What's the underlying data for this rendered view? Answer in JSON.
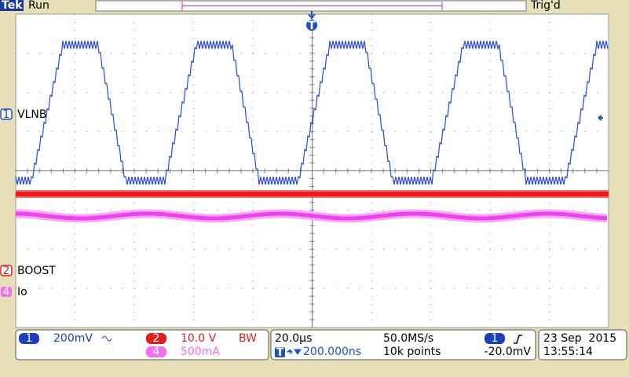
{
  "header": {
    "brand": "Tek",
    "status": "Run",
    "trigger_state": "Trig'd"
  },
  "trigger_marker": "T",
  "channels": [
    {
      "number": "1",
      "label": "VLNB"
    },
    {
      "number": "2",
      "label": "BOOST"
    },
    {
      "number": "4",
      "label": "Io"
    }
  ],
  "readouts": {
    "ch1": {
      "number": "1",
      "scale": "200mV"
    },
    "ch2": {
      "number": "2",
      "scale": "10.0 V",
      "bw": "BW"
    },
    "ch4": {
      "number": "4",
      "scale": "500mA"
    },
    "timebase": "20.0µs",
    "sample_rate": "50.0MS/s",
    "trigger_position": "200.000ns",
    "record_length": "10k points",
    "trigger_channel": "1",
    "trigger_level": "-20.0mV",
    "date": "23 Sep  2015",
    "time": "13:55:14"
  }
}
